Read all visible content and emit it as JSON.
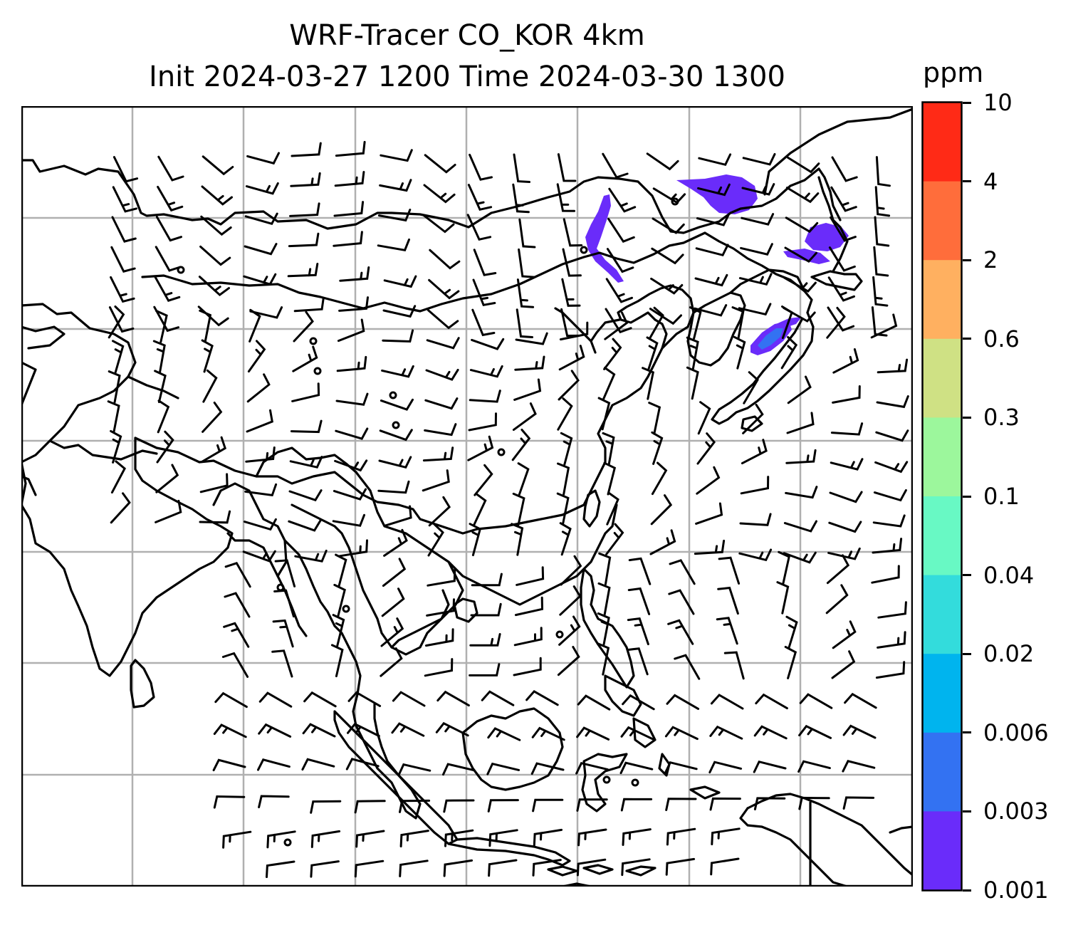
{
  "title": {
    "line1": "WRF-Tracer CO_KOR 4km",
    "line2": "Init 2024-03-27 1200 Time 2024-03-30 1300"
  },
  "colorbar": {
    "unit": "ppm",
    "levels": [
      "10",
      "4",
      "2",
      "0.6",
      "0.3",
      "0.1",
      "0.04",
      "0.02",
      "0.006",
      "0.003",
      "0.001"
    ],
    "colors": [
      "#ff2a16",
      "#ff6d3b",
      "#ffb060",
      "#cfe184",
      "#9cf79c",
      "#68f9c4",
      "#33dcdc",
      "#00b4ee",
      "#3372f2",
      "#6a2cfa"
    ]
  },
  "map": {
    "gridlines": true,
    "gridline_color": "#b0b0b0",
    "coastline_color": "#000000",
    "plume_color_low": "#6a2cfa",
    "plume_color_mid": "#3372f2",
    "layers": [
      "coastlines",
      "country-borders",
      "wind-barbs",
      "co-tracer-plumes",
      "calm-circles"
    ]
  }
}
